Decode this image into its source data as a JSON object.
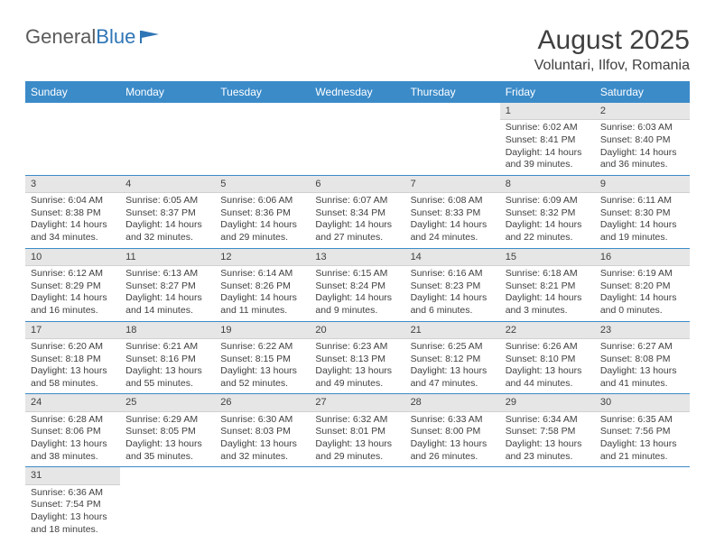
{
  "logo": {
    "text1": "General",
    "text2": "Blue"
  },
  "title": "August 2025",
  "location": "Voluntari, Ilfov, Romania",
  "colors": {
    "header_bg": "#3b8bc9",
    "header_text": "#ffffff",
    "daynum_bg": "#e6e6e6",
    "text": "#404040",
    "row_divider": "#3b8bc9",
    "logo_gray": "#5a5a5a",
    "logo_blue": "#2e75b6",
    "page_bg": "#ffffff"
  },
  "weekdays": [
    "Sunday",
    "Monday",
    "Tuesday",
    "Wednesday",
    "Thursday",
    "Friday",
    "Saturday"
  ],
  "weeks": [
    [
      null,
      null,
      null,
      null,
      null,
      {
        "d": "1",
        "sr": "6:02 AM",
        "ss": "8:41 PM",
        "dh": 14,
        "dm": 39
      },
      {
        "d": "2",
        "sr": "6:03 AM",
        "ss": "8:40 PM",
        "dh": 14,
        "dm": 36
      }
    ],
    [
      {
        "d": "3",
        "sr": "6:04 AM",
        "ss": "8:38 PM",
        "dh": 14,
        "dm": 34
      },
      {
        "d": "4",
        "sr": "6:05 AM",
        "ss": "8:37 PM",
        "dh": 14,
        "dm": 32
      },
      {
        "d": "5",
        "sr": "6:06 AM",
        "ss": "8:36 PM",
        "dh": 14,
        "dm": 29
      },
      {
        "d": "6",
        "sr": "6:07 AM",
        "ss": "8:34 PM",
        "dh": 14,
        "dm": 27
      },
      {
        "d": "7",
        "sr": "6:08 AM",
        "ss": "8:33 PM",
        "dh": 14,
        "dm": 24
      },
      {
        "d": "8",
        "sr": "6:09 AM",
        "ss": "8:32 PM",
        "dh": 14,
        "dm": 22
      },
      {
        "d": "9",
        "sr": "6:11 AM",
        "ss": "8:30 PM",
        "dh": 14,
        "dm": 19
      }
    ],
    [
      {
        "d": "10",
        "sr": "6:12 AM",
        "ss": "8:29 PM",
        "dh": 14,
        "dm": 16
      },
      {
        "d": "11",
        "sr": "6:13 AM",
        "ss": "8:27 PM",
        "dh": 14,
        "dm": 14
      },
      {
        "d": "12",
        "sr": "6:14 AM",
        "ss": "8:26 PM",
        "dh": 14,
        "dm": 11
      },
      {
        "d": "13",
        "sr": "6:15 AM",
        "ss": "8:24 PM",
        "dh": 14,
        "dm": 9
      },
      {
        "d": "14",
        "sr": "6:16 AM",
        "ss": "8:23 PM",
        "dh": 14,
        "dm": 6
      },
      {
        "d": "15",
        "sr": "6:18 AM",
        "ss": "8:21 PM",
        "dh": 14,
        "dm": 3
      },
      {
        "d": "16",
        "sr": "6:19 AM",
        "ss": "8:20 PM",
        "dh": 14,
        "dm": 0
      }
    ],
    [
      {
        "d": "17",
        "sr": "6:20 AM",
        "ss": "8:18 PM",
        "dh": 13,
        "dm": 58
      },
      {
        "d": "18",
        "sr": "6:21 AM",
        "ss": "8:16 PM",
        "dh": 13,
        "dm": 55
      },
      {
        "d": "19",
        "sr": "6:22 AM",
        "ss": "8:15 PM",
        "dh": 13,
        "dm": 52
      },
      {
        "d": "20",
        "sr": "6:23 AM",
        "ss": "8:13 PM",
        "dh": 13,
        "dm": 49
      },
      {
        "d": "21",
        "sr": "6:25 AM",
        "ss": "8:12 PM",
        "dh": 13,
        "dm": 47
      },
      {
        "d": "22",
        "sr": "6:26 AM",
        "ss": "8:10 PM",
        "dh": 13,
        "dm": 44
      },
      {
        "d": "23",
        "sr": "6:27 AM",
        "ss": "8:08 PM",
        "dh": 13,
        "dm": 41
      }
    ],
    [
      {
        "d": "24",
        "sr": "6:28 AM",
        "ss": "8:06 PM",
        "dh": 13,
        "dm": 38
      },
      {
        "d": "25",
        "sr": "6:29 AM",
        "ss": "8:05 PM",
        "dh": 13,
        "dm": 35
      },
      {
        "d": "26",
        "sr": "6:30 AM",
        "ss": "8:03 PM",
        "dh": 13,
        "dm": 32
      },
      {
        "d": "27",
        "sr": "6:32 AM",
        "ss": "8:01 PM",
        "dh": 13,
        "dm": 29
      },
      {
        "d": "28",
        "sr": "6:33 AM",
        "ss": "8:00 PM",
        "dh": 13,
        "dm": 26
      },
      {
        "d": "29",
        "sr": "6:34 AM",
        "ss": "7:58 PM",
        "dh": 13,
        "dm": 23
      },
      {
        "d": "30",
        "sr": "6:35 AM",
        "ss": "7:56 PM",
        "dh": 13,
        "dm": 21
      }
    ],
    [
      {
        "d": "31",
        "sr": "6:36 AM",
        "ss": "7:54 PM",
        "dh": 13,
        "dm": 18
      },
      null,
      null,
      null,
      null,
      null,
      null
    ]
  ],
  "labels": {
    "sunrise": "Sunrise:",
    "sunset": "Sunset:",
    "daylight": "Daylight:",
    "hours": "hours",
    "and": "and",
    "minutes": "minutes."
  }
}
